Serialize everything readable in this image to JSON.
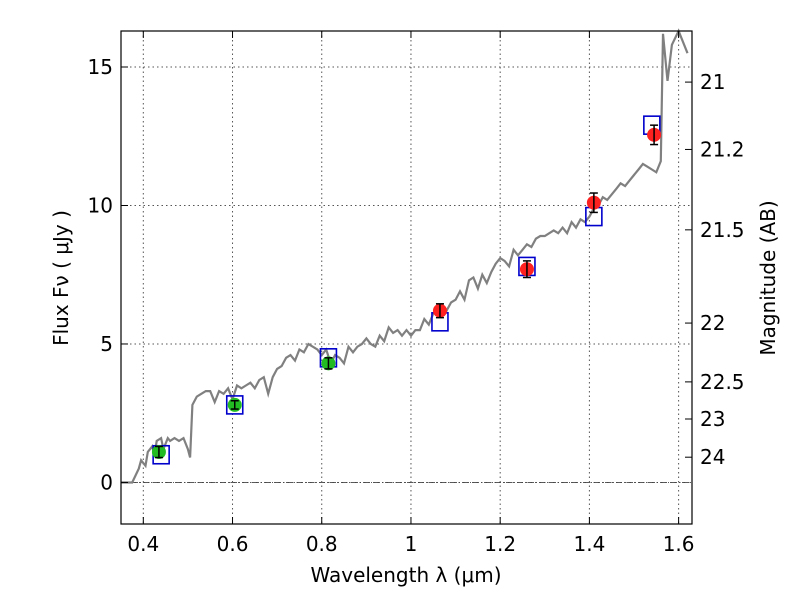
{
  "chart_data": {
    "type": "scatter",
    "xlabel": "Wavelength  λ (μm)",
    "ylabel": "Flux  Fν  ( μJy )",
    "y2label": "Magnitude (AB)",
    "xlim": [
      0.35,
      1.63
    ],
    "ylim": [
      -1.5,
      16.3
    ],
    "grid": true,
    "x_ticks": [
      {
        "value": 0.4,
        "label": "0.4"
      },
      {
        "value": 0.6,
        "label": "0.6"
      },
      {
        "value": 0.8,
        "label": "0.8"
      },
      {
        "value": 1.0,
        "label": "1"
      },
      {
        "value": 1.2,
        "label": "1.2"
      },
      {
        "value": 1.4,
        "label": "1.4"
      },
      {
        "value": 1.6,
        "label": "1.6"
      }
    ],
    "y_ticks": [
      {
        "value": 0,
        "label": "0"
      },
      {
        "value": 5,
        "label": "5"
      },
      {
        "value": 10,
        "label": "10"
      },
      {
        "value": 15,
        "label": "15"
      }
    ],
    "y2_ticks": [
      {
        "value": 21,
        "label": "21"
      },
      {
        "value": 21.2,
        "label": "21.2"
      },
      {
        "value": 21.5,
        "label": "21.5"
      },
      {
        "value": 22,
        "label": "22"
      },
      {
        "value": 22.5,
        "label": "22.5"
      },
      {
        "value": 23,
        "label": "23"
      },
      {
        "value": 24,
        "label": "24"
      }
    ],
    "zero_line": 0,
    "series": [
      {
        "kind": "line",
        "color": "#808080",
        "x": [
          0.35,
          0.375,
          0.39,
          0.395,
          0.405,
          0.41,
          0.42,
          0.425,
          0.43,
          0.44,
          0.445,
          0.455,
          0.46,
          0.47,
          0.48,
          0.49,
          0.5,
          0.505,
          0.51,
          0.52,
          0.53,
          0.54,
          0.55,
          0.56,
          0.57,
          0.58,
          0.59,
          0.6,
          0.61,
          0.62,
          0.63,
          0.64,
          0.65,
          0.66,
          0.67,
          0.68,
          0.69,
          0.7,
          0.71,
          0.72,
          0.73,
          0.74,
          0.75,
          0.76,
          0.77,
          0.78,
          0.79,
          0.8,
          0.81,
          0.82,
          0.83,
          0.84,
          0.85,
          0.86,
          0.87,
          0.88,
          0.89,
          0.9,
          0.91,
          0.92,
          0.93,
          0.94,
          0.95,
          0.96,
          0.97,
          0.98,
          0.99,
          1.0,
          1.01,
          1.02,
          1.03,
          1.04,
          1.05,
          1.06,
          1.07,
          1.08,
          1.09,
          1.1,
          1.11,
          1.12,
          1.13,
          1.14,
          1.15,
          1.16,
          1.17,
          1.18,
          1.19,
          1.2,
          1.21,
          1.22,
          1.23,
          1.24,
          1.25,
          1.26,
          1.27,
          1.28,
          1.29,
          1.3,
          1.31,
          1.32,
          1.33,
          1.34,
          1.35,
          1.36,
          1.37,
          1.38,
          1.39,
          1.4,
          1.41,
          1.42,
          1.43,
          1.44,
          1.45,
          1.46,
          1.47,
          1.48,
          1.49,
          1.5,
          1.51,
          1.52,
          1.53,
          1.54,
          1.55,
          1.56,
          1.565,
          1.575,
          1.585,
          1.6,
          1.62
        ],
        "y": [
          0.0,
          0.0,
          0.5,
          0.8,
          0.6,
          1.1,
          1.3,
          1.0,
          1.5,
          1.6,
          1.2,
          1.6,
          1.5,
          1.6,
          1.5,
          1.6,
          1.2,
          0.9,
          2.8,
          3.1,
          3.2,
          3.3,
          3.3,
          2.9,
          3.3,
          3.2,
          3.4,
          3.0,
          3.5,
          3.4,
          3.5,
          3.6,
          3.4,
          3.7,
          3.8,
          3.2,
          3.8,
          4.1,
          4.2,
          4.5,
          4.6,
          4.4,
          4.8,
          4.7,
          5.0,
          4.9,
          4.8,
          4.6,
          4.8,
          4.3,
          4.6,
          4.5,
          4.3,
          4.9,
          4.7,
          4.9,
          5.0,
          5.2,
          5.0,
          4.9,
          5.3,
          5.1,
          5.6,
          5.4,
          5.5,
          5.3,
          5.5,
          5.3,
          5.5,
          5.5,
          5.9,
          5.7,
          6.1,
          6.3,
          6.4,
          6.2,
          6.5,
          6.6,
          6.9,
          6.6,
          7.3,
          7.4,
          7.0,
          7.5,
          7.2,
          7.6,
          7.9,
          8.1,
          8.0,
          7.8,
          8.4,
          8.2,
          8.4,
          8.6,
          8.5,
          8.8,
          8.9,
          8.9,
          9.0,
          9.1,
          9.0,
          9.2,
          9.0,
          9.4,
          9.2,
          9.5,
          9.4,
          9.6,
          9.9,
          10.0,
          10.3,
          10.2,
          10.4,
          10.6,
          10.8,
          10.7,
          10.9,
          11.1,
          11.3,
          11.5,
          11.4,
          11.3,
          11.2,
          11.6,
          16.2,
          14.5,
          15.8,
          16.3,
          15.5
        ]
      },
      {
        "kind": "model-band",
        "color": "#0000cc",
        "x": [
          0.44,
          0.605,
          0.815,
          1.065,
          1.26,
          1.41,
          1.54
        ],
        "y": [
          1.0,
          2.8,
          4.5,
          5.8,
          7.8,
          9.6,
          12.9
        ]
      },
      {
        "kind": "observed-optical",
        "color": "#22bb22",
        "x": [
          0.435,
          0.605,
          0.815
        ],
        "y": [
          1.1,
          2.8,
          4.3
        ],
        "yerr": [
          0.2,
          0.15,
          0.2
        ]
      },
      {
        "kind": "observed-nir",
        "color": "#ff2020",
        "x": [
          1.065,
          1.26,
          1.41,
          1.545
        ],
        "y": [
          6.2,
          7.7,
          10.1,
          12.55
        ],
        "yerr": [
          0.25,
          0.3,
          0.35,
          0.35
        ]
      }
    ]
  }
}
